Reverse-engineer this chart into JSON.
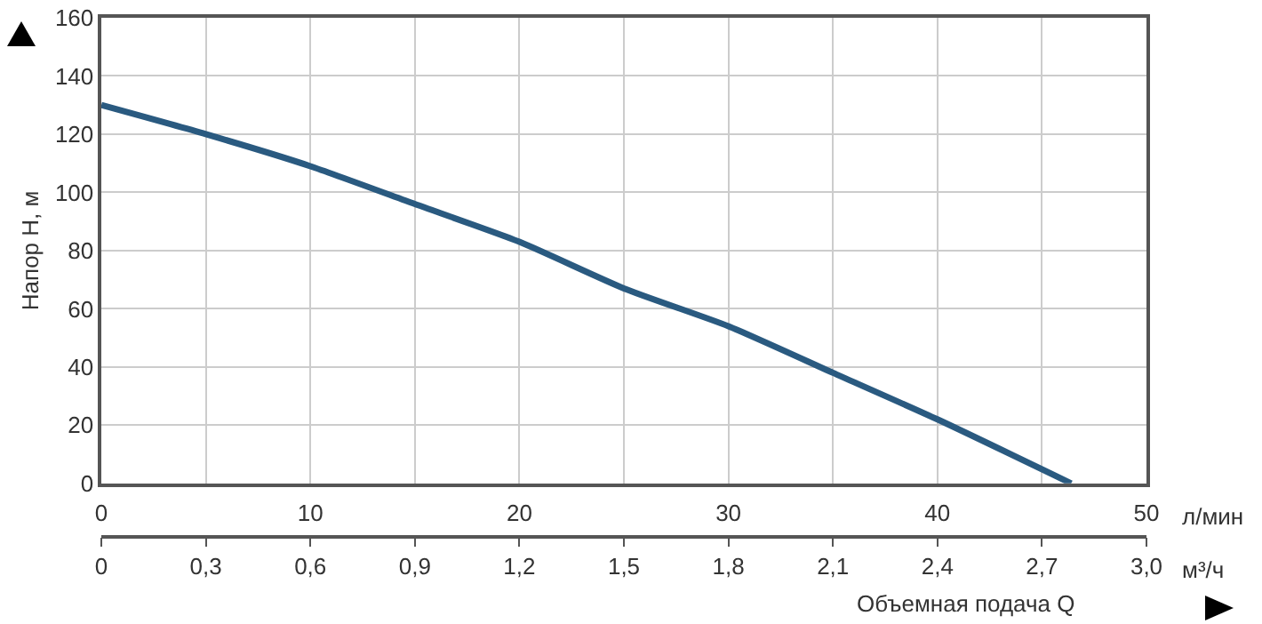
{
  "chart_data": {
    "type": "line",
    "xlabel": "л/мин",
    "x2label": "м³/ч",
    "ylabel": "Напор H, м",
    "annotations": [
      "Объемная подача Q"
    ],
    "x": [
      0,
      5,
      10,
      15,
      20,
      25,
      30,
      35,
      40,
      46.4
    ],
    "series": [
      {
        "color": "#2a5a80",
        "values": [
          130,
          120,
          109,
          96,
          83,
          67,
          54,
          38,
          22,
          0
        ]
      }
    ],
    "xlim": [
      0,
      50
    ],
    "xticks": [
      0,
      10,
      20,
      30,
      40,
      50
    ],
    "x2lim": [
      0,
      3
    ],
    "x2ticks": [
      0,
      {
        "value": 0.3,
        "label": "0,3"
      },
      {
        "value": 0.6,
        "label": "0,6"
      },
      {
        "value": 0.9,
        "label": "0,9"
      },
      {
        "value": 1.2,
        "label": "1,2"
      },
      {
        "value": 1.5,
        "label": "1,5"
      },
      {
        "value": 1.8,
        "label": "1,8"
      },
      {
        "value": 2.1,
        "label": "2,1"
      },
      {
        "value": 2.4,
        "label": "2,4"
      },
      {
        "value": 2.7,
        "label": "2,7"
      },
      {
        "value": 3,
        "label": "3,0"
      }
    ],
    "ylim": [
      0,
      160
    ],
    "yticks": [
      0,
      20,
      40,
      60,
      80,
      100,
      120,
      140,
      160
    ],
    "grid": true,
    "marker": "none",
    "line_style": "solid"
  }
}
